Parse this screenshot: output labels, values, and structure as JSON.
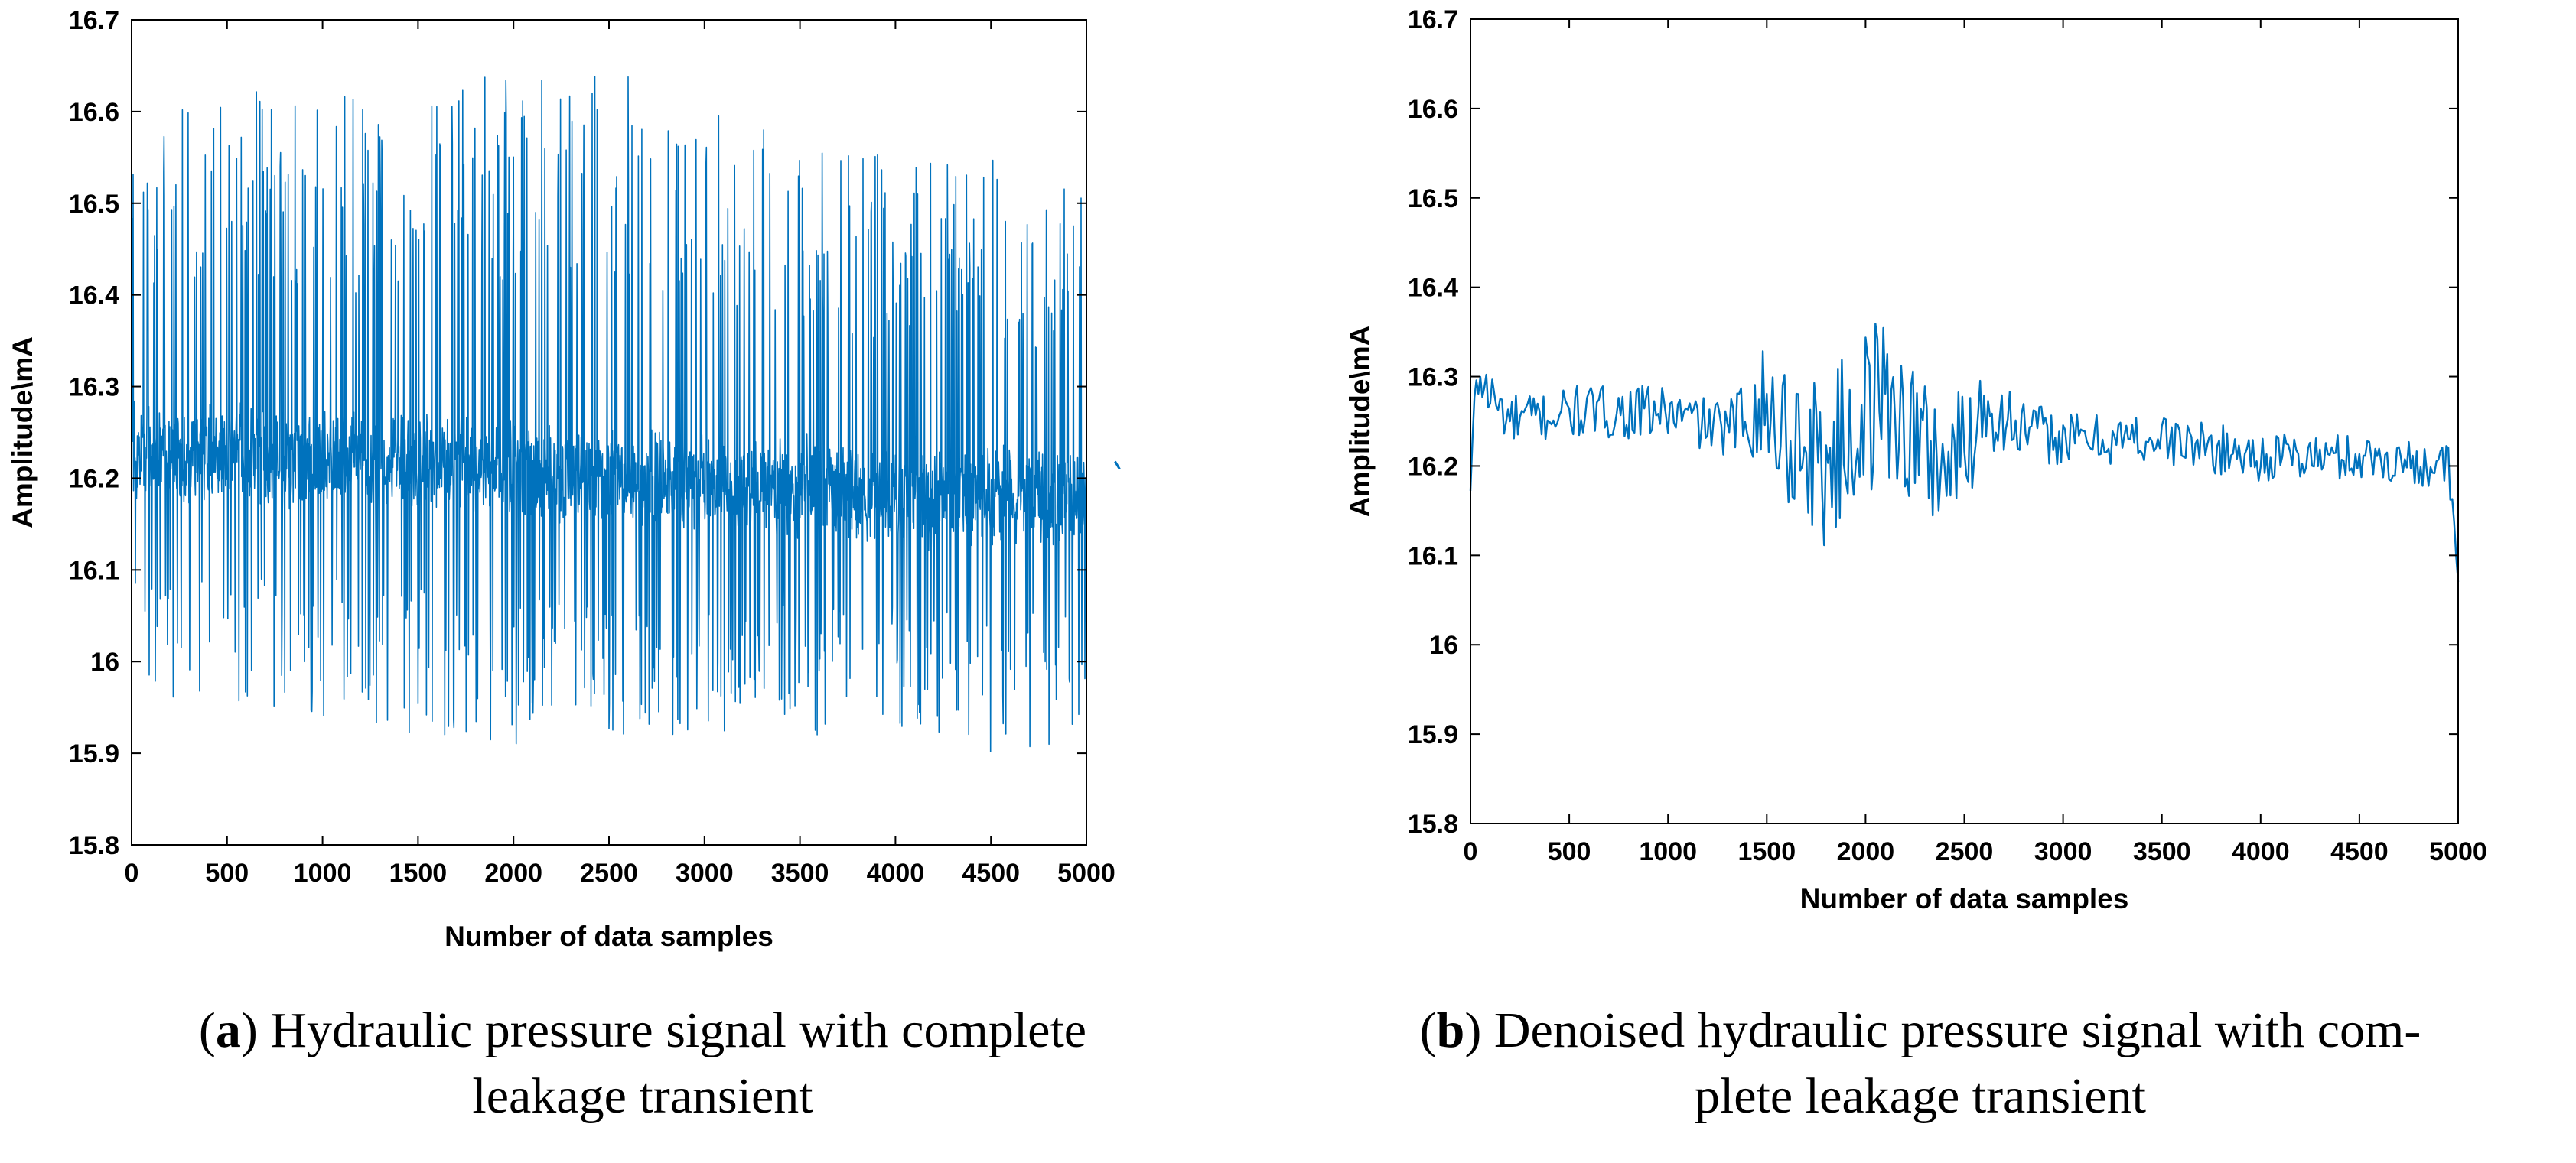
{
  "colors": {
    "signal": "#0072BD",
    "axis": "#000000",
    "background": "#ffffff"
  },
  "captions": {
    "a": {
      "letter": "a",
      "text_line1": "Hydraulic pressure signal with complete",
      "text_line2": "leakage transient"
    },
    "b": {
      "letter": "b",
      "text_line1": "Denoised hydraulic pressure signal with com-",
      "text_line2": "plete leakage transient"
    }
  },
  "chart_data": [
    {
      "id": "a",
      "type": "line",
      "title": "",
      "xlabel": "Number of data samples",
      "ylabel": "Amplitude\\mA",
      "xlim": [
        0,
        5000
      ],
      "ylim": [
        15.8,
        16.7
      ],
      "xticks": [
        0,
        500,
        1000,
        1500,
        2000,
        2500,
        3000,
        3500,
        4000,
        4500,
        5000
      ],
      "yticks": [
        15.8,
        15.9,
        16,
        16.1,
        16.2,
        16.3,
        16.4,
        16.5,
        16.6,
        16.7
      ],
      "xtick_labels": [
        "0",
        "500",
        "1000",
        "1500",
        "2000",
        "2500",
        "3000",
        "3500",
        "4000",
        "4500",
        "5000"
      ],
      "ytick_labels": [
        "15.8",
        "15.9",
        "16",
        "16.1",
        "16.2",
        "16.3",
        "16.4",
        "16.5",
        "16.6",
        "16.7"
      ],
      "grid": false,
      "series": [
        {
          "name": "Hydraulic pressure signal",
          "n_samples": 5000,
          "baseline": [
            [
              0,
              16.23
            ],
            [
              1000,
              16.22
            ],
            [
              1500,
              16.22
            ],
            [
              2000,
              16.21
            ],
            [
              2500,
              16.2
            ],
            [
              3000,
              16.19
            ],
            [
              3500,
              16.19
            ],
            [
              4000,
              16.18
            ],
            [
              4500,
              16.18
            ],
            [
              5000,
              16.18
            ]
          ],
          "dense_band_halfwidth": 0.06,
          "spike_max": [
            [
              0,
              16.58
            ],
            [
              500,
              16.64
            ],
            [
              1000,
              16.62
            ],
            [
              1500,
              16.61
            ],
            [
              1800,
              16.65
            ],
            [
              2300,
              16.67
            ],
            [
              2500,
              16.66
            ],
            [
              3000,
              16.6
            ],
            [
              3500,
              16.57
            ],
            [
              4000,
              16.55
            ],
            [
              4500,
              16.55
            ],
            [
              5000,
              16.52
            ]
          ],
          "spike_min": [
            [
              0,
              15.94
            ],
            [
              500,
              15.95
            ],
            [
              1000,
              15.94
            ],
            [
              1500,
              15.92
            ],
            [
              1800,
              15.9
            ],
            [
              2300,
              15.92
            ],
            [
              2900,
              15.9
            ],
            [
              3500,
              15.92
            ],
            [
              4000,
              15.92
            ],
            [
              4500,
              15.9
            ],
            [
              5000,
              15.9
            ]
          ]
        }
      ],
      "extra_point": {
        "x": 5150,
        "y": 16.215
      }
    },
    {
      "id": "b",
      "type": "line",
      "title": "",
      "xlabel": "Number of data samples",
      "ylabel": "Amplitude\\mA",
      "xlim": [
        0,
        5000
      ],
      "ylim": [
        15.8,
        16.7
      ],
      "xticks": [
        0,
        500,
        1000,
        1500,
        2000,
        2500,
        3000,
        3500,
        4000,
        4500,
        5000
      ],
      "yticks": [
        15.8,
        15.9,
        16,
        16.1,
        16.2,
        16.3,
        16.4,
        16.5,
        16.6,
        16.7
      ],
      "xtick_labels": [
        "0",
        "500",
        "1000",
        "1500",
        "2000",
        "2500",
        "3000",
        "3500",
        "4000",
        "4500",
        "5000"
      ],
      "ytick_labels": [
        "15.8",
        "15.9",
        "16",
        "16.1",
        "16.2",
        "16.3",
        "16.4",
        "16.5",
        "16.6",
        "16.7"
      ],
      "grid": false,
      "series": [
        {
          "name": "Denoised hydraulic pressure signal",
          "step": 10,
          "anchors": [
            [
              0,
              16.17
            ],
            [
              30,
              16.3
            ],
            [
              200,
              16.25
            ],
            [
              500,
              16.26
            ],
            [
              1000,
              16.26
            ],
            [
              1300,
              16.24
            ],
            [
              1450,
              16.27
            ],
            [
              1600,
              16.24
            ],
            [
              1800,
              16.2
            ],
            [
              2000,
              16.26
            ],
            [
              2100,
              16.28
            ],
            [
              2300,
              16.22
            ],
            [
              2450,
              16.2
            ],
            [
              2600,
              16.27
            ],
            [
              2800,
              16.24
            ],
            [
              3000,
              16.23
            ],
            [
              3500,
              16.23
            ],
            [
              4000,
              16.21
            ],
            [
              4500,
              16.21
            ],
            [
              4950,
              16.2
            ],
            [
              5000,
              16.07
            ]
          ],
          "noise": [
            [
              0,
              0.03
            ],
            [
              1300,
              0.03
            ],
            [
              1450,
              0.06
            ],
            [
              1600,
              0.09
            ],
            [
              2100,
              0.1
            ],
            [
              2500,
              0.08
            ],
            [
              2700,
              0.04
            ],
            [
              3000,
              0.03
            ],
            [
              5000,
              0.025
            ]
          ]
        }
      ]
    }
  ]
}
